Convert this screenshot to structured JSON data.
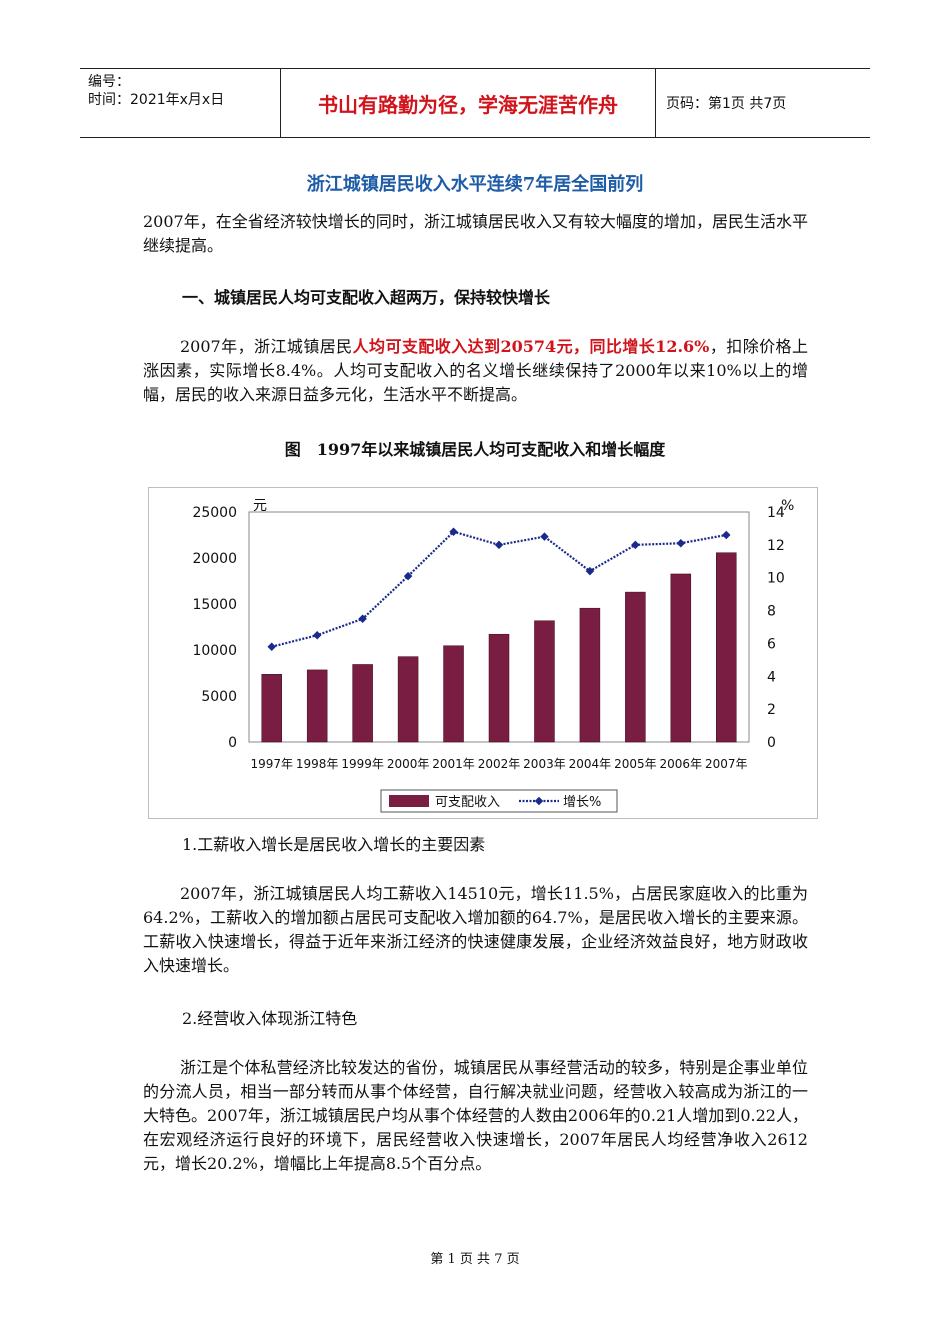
{
  "header": {
    "number_label": "编号：",
    "time_label": "时间：2021年x月x日",
    "motto": "书山有路勤为径，学海无涯苦作舟",
    "page_code": "页码：第1页  共7页"
  },
  "title": "浙江城镇居民收入水平连续7年居全国前列",
  "intro": "2007年，在全省经济较快增长的同时，浙江城镇居民收入又有较大幅度的增加，居民生活水平继续提高。",
  "section1": {
    "heading": "一、城镇居民人均可支配收入超两万，保持较快增长",
    "p_start": "2007年，浙江城镇居民",
    "p_highlight": "人均可支配收入达到20574元，同比增长12.6%",
    "p_end": "，扣除价格上涨因素，实际增长8.4%。人均可支配收入的名义增长继续保持了2000年以来10%以上的增幅，居民的收入来源日益多元化，生活水平不断提高。"
  },
  "figure_caption": "图　1997年以来城镇居民人均可支配收入和增长幅度",
  "chart_data": {
    "type": "bar",
    "categories": [
      "1997年",
      "1998年",
      "1999年",
      "2000年",
      "2001年",
      "2002年",
      "2003年",
      "2004年",
      "2005年",
      "2006年",
      "2007年"
    ],
    "series": [
      {
        "name": "可支配收入",
        "type": "bar",
        "axis": "left",
        "values": [
          7359,
          7837,
          8428,
          9279,
          10465,
          11716,
          13180,
          14546,
          16294,
          18265,
          20574
        ]
      },
      {
        "name": "增长%",
        "type": "line",
        "axis": "right",
        "values": [
          5.8,
          6.5,
          7.5,
          10.1,
          12.8,
          12.0,
          12.5,
          10.4,
          12.0,
          12.1,
          12.6
        ]
      }
    ],
    "ylabel_left": "元",
    "ylabel_right": "%",
    "ylim_left": [
      0,
      25000
    ],
    "ylim_right": [
      0,
      14
    ],
    "yticks_left": [
      "0",
      "5000",
      "10000",
      "15000",
      "20000",
      "25000"
    ],
    "yticks_right": [
      "0",
      "2",
      "4",
      "6",
      "8",
      "10",
      "12",
      "14"
    ],
    "legend_position": "bottom",
    "colors": {
      "bar": "#7a1d43",
      "line": "#1a2a8c"
    }
  },
  "sub1": {
    "heading": "1.工薪收入增长是居民收入增长的主要因素",
    "para": "2007年，浙江城镇居民人均工薪收入14510元，增长11.5%，占居民家庭收入的比重为64.2%，工薪收入的增加额占居民可支配收入增加额的64.7%，是居民收入增长的主要来源。工薪收入快速增长，得益于近年来浙江经济的快速健康发展，企业经济效益良好，地方财政收入快速增长。"
  },
  "sub2": {
    "heading": "2.经营收入体现浙江特色",
    "para": "浙江是个体私营经济比较发达的省份，城镇居民从事经营活动的较多，特别是企事业单位的分流人员，相当一部分转而从事个体经营，自行解决就业问题，经营收入较高成为浙江的一大特色。2007年，浙江城镇居民户均从事个体经营的人数由2006年的0.21人增加到0.22人，在宏观经济运行良好的环境下，居民经营收入快速增长，2007年居民人均经营净收入2612元，增长20.2%，增幅比上年提高8.5个百分点。"
  },
  "footer": "第 1 页 共 7 页"
}
